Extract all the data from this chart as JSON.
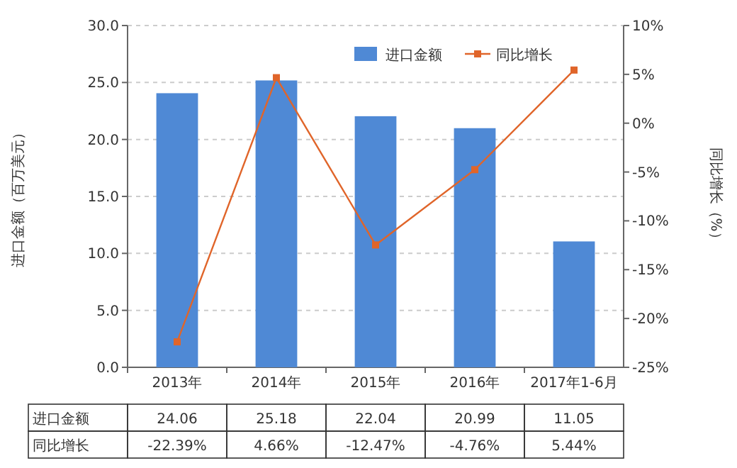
{
  "chart_data": {
    "type": "bar",
    "ylabel": "进口金额（百万美元）",
    "y2label": "同比增长（%）",
    "categories": [
      "2013年",
      "2014年",
      "2015年",
      "2016年",
      "2017年1-6月"
    ],
    "series": [
      {
        "name": "进口金额",
        "color": "#4f89d5",
        "values": [
          24.06,
          25.18,
          22.04,
          20.99,
          11.05
        ],
        "value_labels": [
          "24.06",
          "25.18",
          "22.04",
          "20.99",
          "11.05"
        ]
      },
      {
        "name": "同比增长",
        "type": "line",
        "axis": "y2",
        "color": "#e0652a",
        "marker": "square",
        "values": [
          -22.39,
          4.66,
          -12.47,
          -4.76,
          5.44
        ],
        "value_labels": [
          "-22.39%",
          "4.66%",
          "-12.47%",
          "-4.76%",
          "5.44%"
        ]
      }
    ],
    "ylim": [
      0,
      30
    ],
    "yticks": [
      {
        "value": 0,
        "label": "0.0"
      },
      {
        "value": 5,
        "label": "5.0"
      },
      {
        "value": 10,
        "label": "10.0"
      },
      {
        "value": 15,
        "label": "15.0"
      },
      {
        "value": 20,
        "label": "20.0"
      },
      {
        "value": 25,
        "label": "25.0"
      },
      {
        "value": 30,
        "label": "30.0"
      }
    ],
    "y2lim": [
      -25,
      10
    ],
    "y2ticks": [
      {
        "value": -25,
        "label": "-25%"
      },
      {
        "value": -20,
        "label": "-20%"
      },
      {
        "value": -15,
        "label": "-15%"
      },
      {
        "value": -10,
        "label": "-10%"
      },
      {
        "value": -5,
        "label": "-5%"
      },
      {
        "value": 0,
        "label": "0%"
      },
      {
        "value": 5,
        "label": "5%"
      },
      {
        "value": 10,
        "label": "10%"
      }
    ],
    "grid": "y",
    "legend": "top right"
  }
}
